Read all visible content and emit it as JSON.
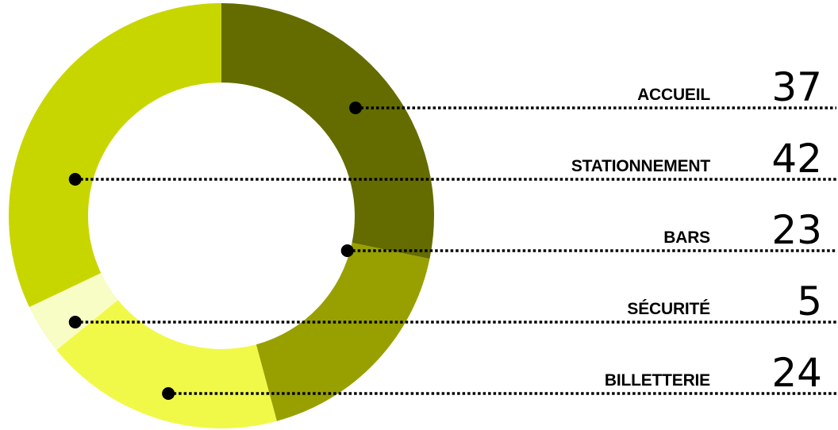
{
  "chart_data": {
    "type": "pie",
    "categories": [
      "ACCUEIL",
      "BARS",
      "BILLETTERIE",
      "SÉCURITÉ",
      "STATIONNEMENT"
    ],
    "values": [
      37,
      23,
      24,
      5,
      42
    ],
    "colors": [
      "#646c00",
      "#98a000",
      "#f1f948",
      "#f8fcc5",
      "#c8d600"
    ],
    "legend_order": [
      "ACCUEIL",
      "STATIONNEMENT",
      "BARS",
      "SÉCURITÉ",
      "BILLETTERIE"
    ],
    "legend_placement": "right",
    "style": "donut",
    "leader_lines": "dotted"
  }
}
